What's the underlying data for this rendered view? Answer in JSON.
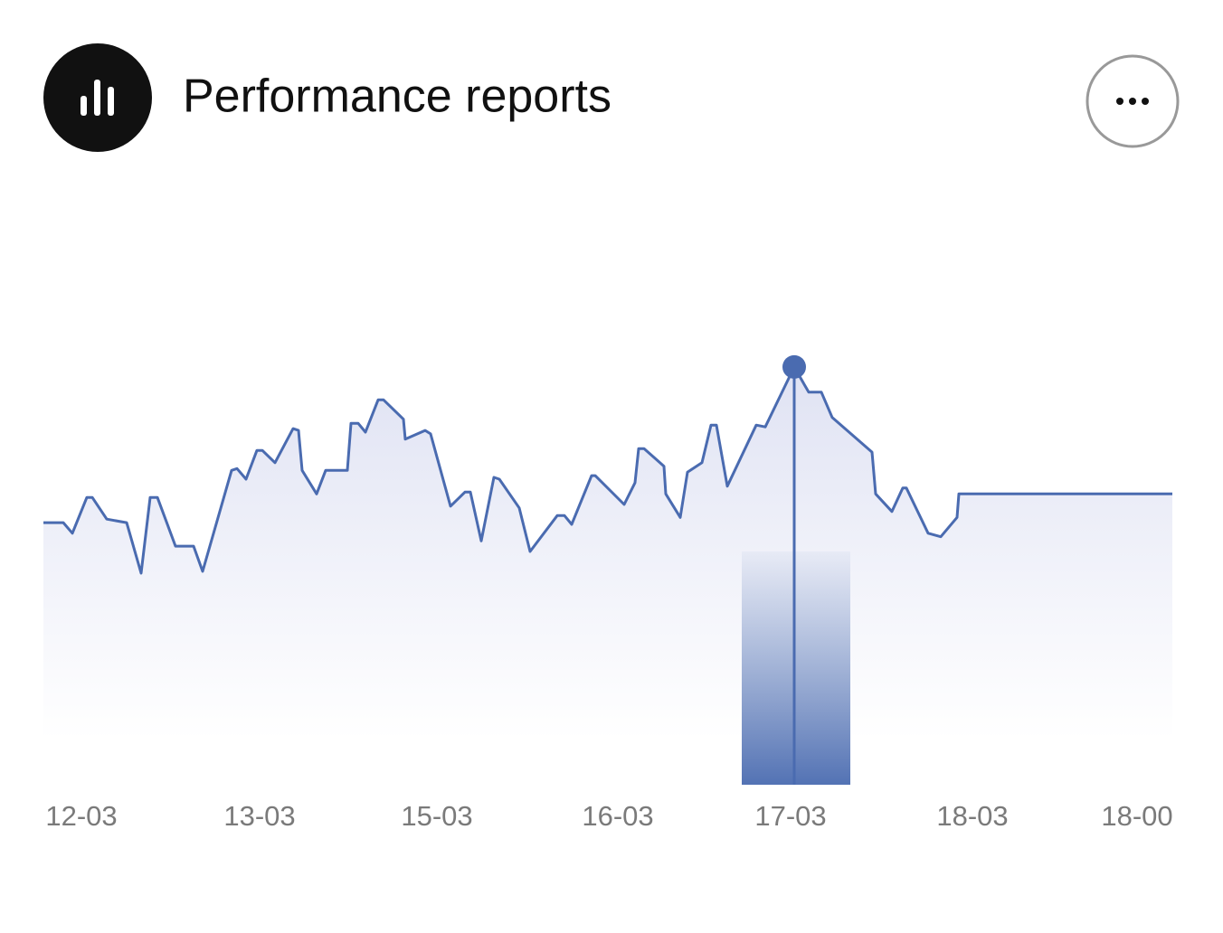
{
  "chart_data": {
    "type": "line",
    "title": "Performance reports",
    "x": [
      0,
      22,
      32,
      48,
      54,
      70,
      92,
      108,
      118,
      126,
      146,
      166,
      176,
      208,
      214,
      224,
      236,
      242,
      256,
      276,
      282,
      286,
      302,
      312,
      336,
      340,
      348,
      356,
      370,
      376,
      398,
      400,
      422,
      428,
      450,
      466,
      472,
      484,
      498,
      504,
      526,
      538,
      568,
      576,
      584,
      606,
      610,
      642,
      654,
      658,
      664,
      686,
      688,
      704,
      712,
      728,
      738,
      744,
      756,
      788,
      798,
      830,
      846,
      860,
      872,
      916,
      920,
      938,
      950,
      954,
      978,
      992,
      1010,
      1012,
      1248
    ],
    "series": [
      {
        "color": "#4a6bb0",
        "values": [
          44.6,
          44.6,
          42.8,
          48.9,
          48.9,
          45.2,
          44.6,
          36,
          48.9,
          48.9,
          40.6,
          40.6,
          36.3,
          53.5,
          53.8,
          52,
          56.9,
          56.9,
          54.8,
          60.6,
          60.3,
          53.5,
          49.5,
          53.5,
          53.5,
          61.5,
          61.5,
          60,
          65.5,
          65.5,
          62.2,
          58.8,
          60.3,
          59.7,
          47.4,
          49.8,
          49.8,
          41.5,
          52.3,
          52,
          47.1,
          39.7,
          45.8,
          45.8,
          44.3,
          52.6,
          52.6,
          47.7,
          51.4,
          57.2,
          57.2,
          54.2,
          49.5,
          45.5,
          53.2,
          54.8,
          61.2,
          61.2,
          50.8,
          61.2,
          60.9,
          71.1,
          66.8,
          66.8,
          62.5,
          56.6,
          49.5,
          46.5,
          50.5,
          50.5,
          42.8,
          42.2,
          45.5,
          49.5,
          49.5
        ]
      }
    ],
    "xlim": [
      0,
      1248
    ],
    "ylim": [
      0,
      100
    ],
    "xticks": [
      {
        "value": 42,
        "label": "12-03"
      },
      {
        "value": 239,
        "label": "13-03"
      },
      {
        "value": 435,
        "label": "15-03"
      },
      {
        "value": 635,
        "label": "16-03"
      },
      {
        "value": 826,
        "label": "17-03"
      },
      {
        "value": 1027,
        "label": "18-03"
      },
      {
        "value": 1209,
        "label": "18-00"
      }
    ]
  }
}
